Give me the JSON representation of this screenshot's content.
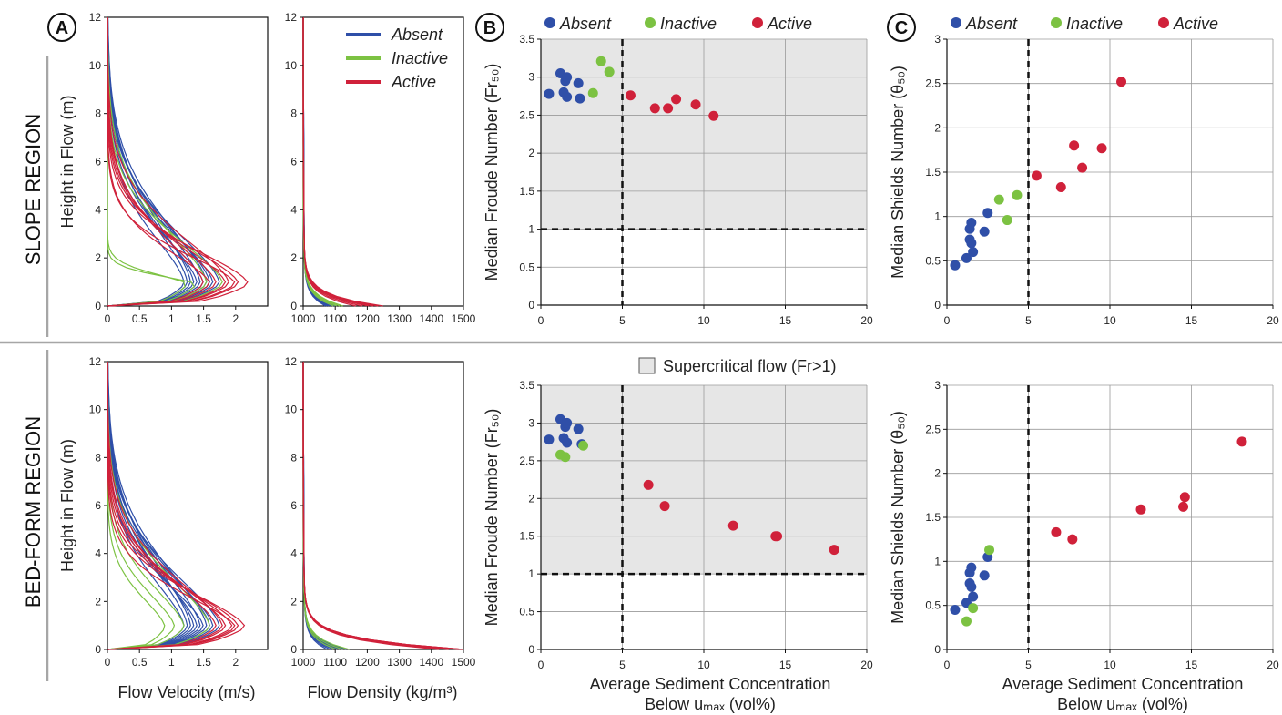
{
  "panel_labels": [
    "A",
    "B",
    "C"
  ],
  "regions": [
    "SLOPE REGION",
    "BED-FORM REGION"
  ],
  "colors": {
    "Absent": "#2f4fa8",
    "Inactive": "#7cc242",
    "Active": "#d0213a"
  },
  "shade_legend": "Supercritical flow (Fr>1)",
  "axis_labels": {
    "height": "Height in Flow (m)",
    "velocity": "Flow Velocity (m/s)",
    "density": "Flow Density (kg/m³)",
    "froude": "Median Froude Number (Fr₅₀)",
    "shields": "Median Shields Number (θ₅₀)",
    "conc1": "Average Sediment Concentration",
    "conc2": "Below uₘₐₓ (vol%)"
  },
  "chart_data": [
    {
      "id": "slope-velocity",
      "type": "line",
      "region": "SLOPE REGION",
      "xlabel": "",
      "ylabel": "Height in Flow (m)",
      "xlim": [
        0,
        2.5
      ],
      "ylim": [
        0,
        12
      ],
      "xticks": [
        0,
        0.5,
        1,
        1.5,
        2
      ],
      "yticks": [
        0,
        2,
        4,
        6,
        8,
        10,
        12
      ],
      "series": [
        {
          "name": "Absent",
          "profiles": [
            {
              "umax": 1.3,
              "h": 12
            },
            {
              "umax": 1.45,
              "h": 11.5
            },
            {
              "umax": 1.6,
              "h": 11
            },
            {
              "umax": 1.75,
              "h": 10.5
            },
            {
              "umax": 1.4,
              "h": 10
            },
            {
              "umax": 1.55,
              "h": 11.8
            },
            {
              "umax": 1.2,
              "h": 9.5
            },
            {
              "umax": 1.65,
              "h": 10.2
            },
            {
              "umax": 1.35,
              "h": 10.8
            },
            {
              "umax": 1.5,
              "h": 9
            },
            {
              "umax": 1.25,
              "h": 11.2
            }
          ]
        },
        {
          "name": "Inactive",
          "profiles": [
            {
              "umax": 1.25,
              "h": 2
            },
            {
              "umax": 1.4,
              "h": 1.6
            },
            {
              "umax": 1.55,
              "h": 10.5
            },
            {
              "umax": 1.8,
              "h": 9
            }
          ]
        },
        {
          "name": "Active",
          "profiles": [
            {
              "umax": 1.5,
              "h": 9
            },
            {
              "umax": 1.7,
              "h": 8.5
            },
            {
              "umax": 1.85,
              "h": 8
            },
            {
              "umax": 2.05,
              "h": 7.5
            },
            {
              "umax": 2.2,
              "h": 7
            },
            {
              "umax": 1.6,
              "h": 6.5
            },
            {
              "umax": 1.9,
              "h": 9.5
            },
            {
              "umax": 2.0,
              "h": 6
            }
          ]
        }
      ]
    },
    {
      "id": "slope-density",
      "type": "line",
      "region": "SLOPE REGION",
      "xlabel": "",
      "ylabel": "",
      "xlim": [
        1000,
        1500
      ],
      "ylim": [
        0,
        12
      ],
      "xticks": [
        1000,
        1100,
        1200,
        1300,
        1400,
        1500
      ],
      "yticks": [
        0,
        2,
        4,
        6,
        8,
        10,
        12
      ],
      "legend": "top-right",
      "series": [
        {
          "name": "Absent",
          "profiles": [
            {
              "rho0": 1070,
              "h": 12
            },
            {
              "rho0": 1080,
              "h": 11
            },
            {
              "rho0": 1090,
              "h": 10
            },
            {
              "rho0": 1095,
              "h": 11.5
            },
            {
              "rho0": 1075,
              "h": 10.5
            },
            {
              "rho0": 1085,
              "h": 9.5
            },
            {
              "rho0": 1065,
              "h": 12
            },
            {
              "rho0": 1100,
              "h": 10
            }
          ]
        },
        {
          "name": "Inactive",
          "profiles": [
            {
              "rho0": 1090,
              "h": 4
            },
            {
              "rho0": 1110,
              "h": 6
            },
            {
              "rho0": 1120,
              "h": 9
            },
            {
              "rho0": 1100,
              "h": 5
            }
          ]
        },
        {
          "name": "Active",
          "profiles": [
            {
              "rho0": 1180,
              "h": 9
            },
            {
              "rho0": 1200,
              "h": 8.5
            },
            {
              "rho0": 1215,
              "h": 8
            },
            {
              "rho0": 1230,
              "h": 7.5
            },
            {
              "rho0": 1245,
              "h": 7
            },
            {
              "rho0": 1160,
              "h": 9.5
            }
          ]
        }
      ]
    },
    {
      "id": "slope-froude",
      "type": "scatter",
      "region": "SLOPE REGION",
      "xlabel": "",
      "ylabel": "Median Froude Number (Fr₅₀)",
      "xlim": [
        0,
        20
      ],
      "ylim": [
        0,
        3.5
      ],
      "xticks": [
        0,
        5,
        10,
        15,
        20
      ],
      "yticks": [
        0,
        0.5,
        1,
        1.5,
        2,
        2.5,
        3,
        3.5
      ],
      "legend": "top",
      "shade_above": 1,
      "hline": 1,
      "vline": 5,
      "series": [
        {
          "name": "Absent",
          "points": [
            [
              0.5,
              2.78
            ],
            [
              1.2,
              3.05
            ],
            [
              1.4,
              2.8
            ],
            [
              1.5,
              2.95
            ],
            [
              1.6,
              2.74
            ],
            [
              1.6,
              3.0
            ],
            [
              2.3,
              2.92
            ],
            [
              2.4,
              2.72
            ]
          ]
        },
        {
          "name": "Inactive",
          "points": [
            [
              3.2,
              2.79
            ],
            [
              3.7,
              3.21
            ],
            [
              4.2,
              3.07
            ]
          ]
        },
        {
          "name": "Active",
          "points": [
            [
              5.5,
              2.76
            ],
            [
              7.0,
              2.59
            ],
            [
              7.8,
              2.59
            ],
            [
              8.3,
              2.71
            ],
            [
              9.5,
              2.64
            ],
            [
              10.6,
              2.49
            ]
          ]
        }
      ]
    },
    {
      "id": "slope-shields",
      "type": "scatter",
      "region": "SLOPE REGION",
      "xlabel": "",
      "ylabel": "Median Shields Number (θ₅₀)",
      "xlim": [
        0,
        20
      ],
      "ylim": [
        0,
        3
      ],
      "xticks": [
        0,
        5,
        10,
        15,
        20
      ],
      "yticks": [
        0,
        0.5,
        1,
        1.5,
        2,
        2.5,
        3
      ],
      "legend": "top",
      "vline": 5,
      "series": [
        {
          "name": "Absent",
          "points": [
            [
              0.5,
              0.45
            ],
            [
              1.2,
              0.53
            ],
            [
              1.4,
              0.74
            ],
            [
              1.4,
              0.86
            ],
            [
              1.5,
              0.7
            ],
            [
              1.5,
              0.93
            ],
            [
              1.6,
              0.6
            ],
            [
              2.3,
              0.83
            ],
            [
              2.5,
              1.04
            ]
          ]
        },
        {
          "name": "Inactive",
          "points": [
            [
              3.2,
              1.19
            ],
            [
              3.7,
              0.96
            ],
            [
              4.3,
              1.24
            ]
          ]
        },
        {
          "name": "Active",
          "points": [
            [
              5.5,
              1.46
            ],
            [
              7.0,
              1.33
            ],
            [
              7.8,
              1.8
            ],
            [
              8.3,
              1.55
            ],
            [
              9.5,
              1.77
            ],
            [
              10.7,
              2.52
            ]
          ]
        }
      ]
    },
    {
      "id": "bedform-velocity",
      "type": "line",
      "region": "BED-FORM REGION",
      "xlabel": "Flow Velocity (m/s)",
      "ylabel": "Height in Flow (m)",
      "xlim": [
        0,
        2.5
      ],
      "ylim": [
        0,
        12
      ],
      "xticks": [
        0,
        0.5,
        1,
        1.5,
        2
      ],
      "yticks": [
        0,
        2,
        4,
        6,
        8,
        10,
        12
      ],
      "series": [
        {
          "name": "Absent",
          "profiles": [
            {
              "umax": 1.3,
              "h": 12
            },
            {
              "umax": 1.45,
              "h": 11.5
            },
            {
              "umax": 1.6,
              "h": 11
            },
            {
              "umax": 1.75,
              "h": 10.5
            },
            {
              "umax": 1.4,
              "h": 10
            },
            {
              "umax": 1.55,
              "h": 11.8
            },
            {
              "umax": 1.2,
              "h": 9.5
            },
            {
              "umax": 1.65,
              "h": 10.2
            },
            {
              "umax": 1.35,
              "h": 10.8
            },
            {
              "umax": 1.5,
              "h": 9
            },
            {
              "umax": 1.25,
              "h": 11.2
            }
          ]
        },
        {
          "name": "Inactive",
          "profiles": [
            {
              "umax": 0.9,
              "h": 6
            },
            {
              "umax": 1.05,
              "h": 7
            },
            {
              "umax": 1.2,
              "h": 8
            },
            {
              "umax": 1.6,
              "h": 10
            }
          ]
        },
        {
          "name": "Active",
          "profiles": [
            {
              "umax": 1.7,
              "h": 9
            },
            {
              "umax": 1.85,
              "h": 8.5
            },
            {
              "umax": 1.95,
              "h": 8
            },
            {
              "umax": 2.05,
              "h": 7.5
            },
            {
              "umax": 2.15,
              "h": 7
            },
            {
              "umax": 1.8,
              "h": 9.5
            },
            {
              "umax": 2.0,
              "h": 6.5
            }
          ]
        }
      ]
    },
    {
      "id": "bedform-density",
      "type": "line",
      "region": "BED-FORM REGION",
      "xlabel": "Flow Density (kg/m³)",
      "ylabel": "",
      "xlim": [
        1000,
        1500
      ],
      "ylim": [
        0,
        12
      ],
      "xticks": [
        1000,
        1100,
        1200,
        1300,
        1400,
        1500
      ],
      "yticks": [
        0,
        2,
        4,
        6,
        8,
        10,
        12
      ],
      "series": [
        {
          "name": "Absent",
          "profiles": [
            {
              "rho0": 1080,
              "h": 12
            },
            {
              "rho0": 1100,
              "h": 11
            },
            {
              "rho0": 1120,
              "h": 10
            },
            {
              "rho0": 1110,
              "h": 11.5
            },
            {
              "rho0": 1090,
              "h": 10.5
            },
            {
              "rho0": 1130,
              "h": 9.5
            },
            {
              "rho0": 1070,
              "h": 12
            }
          ]
        },
        {
          "name": "Inactive",
          "profiles": [
            {
              "rho0": 1100,
              "h": 5
            },
            {
              "rho0": 1120,
              "h": 6
            },
            {
              "rho0": 1140,
              "h": 5.5
            }
          ]
        },
        {
          "name": "Active",
          "profiles": [
            {
              "rho0": 1420,
              "h": 9
            },
            {
              "rho0": 1450,
              "h": 8.5
            },
            {
              "rho0": 1480,
              "h": 8
            },
            {
              "rho0": 1500,
              "h": 7.5
            },
            {
              "rho0": 1500,
              "h": 7
            },
            {
              "rho0": 1500,
              "h": 9.5
            }
          ]
        }
      ]
    },
    {
      "id": "bedform-froude",
      "type": "scatter",
      "region": "BED-FORM REGION",
      "xlabel": "Average Sediment Concentration Below uₘₐₓ (vol%)",
      "ylabel": "Median Froude Number (Fr₅₀)",
      "xlim": [
        0,
        20
      ],
      "ylim": [
        0,
        3.5
      ],
      "xticks": [
        0,
        5,
        10,
        15,
        20
      ],
      "yticks": [
        0,
        0.5,
        1,
        1.5,
        2,
        2.5,
        3,
        3.5
      ],
      "shade_above": 1,
      "hline": 1,
      "vline": 5,
      "series": [
        {
          "name": "Absent",
          "points": [
            [
              0.5,
              2.78
            ],
            [
              1.2,
              3.05
            ],
            [
              1.4,
              2.8
            ],
            [
              1.5,
              2.95
            ],
            [
              1.6,
              2.74
            ],
            [
              1.6,
              3.0
            ],
            [
              2.3,
              2.92
            ],
            [
              2.5,
              2.72
            ]
          ]
        },
        {
          "name": "Inactive",
          "points": [
            [
              1.2,
              2.58
            ],
            [
              1.5,
              2.55
            ],
            [
              2.6,
              2.7
            ]
          ]
        },
        {
          "name": "Active",
          "points": [
            [
              6.6,
              2.18
            ],
            [
              7.6,
              1.9
            ],
            [
              11.8,
              1.64
            ],
            [
              14.4,
              1.5
            ],
            [
              14.5,
              1.5
            ],
            [
              18.0,
              1.32
            ]
          ]
        }
      ]
    },
    {
      "id": "bedform-shields",
      "type": "scatter",
      "region": "BED-FORM REGION",
      "xlabel": "Average Sediment Concentration Below uₘₐₓ (vol%)",
      "ylabel": "Median Shields Number (θ₅₀)",
      "xlim": [
        0,
        20
      ],
      "ylim": [
        0,
        3
      ],
      "xticks": [
        0,
        5,
        10,
        15,
        20
      ],
      "yticks": [
        0,
        0.5,
        1,
        1.5,
        2,
        2.5,
        3
      ],
      "vline": 5,
      "series": [
        {
          "name": "Absent",
          "points": [
            [
              0.5,
              0.45
            ],
            [
              1.2,
              0.53
            ],
            [
              1.4,
              0.75
            ],
            [
              1.4,
              0.87
            ],
            [
              1.5,
              0.71
            ],
            [
              1.5,
              0.93
            ],
            [
              1.6,
              0.6
            ],
            [
              2.3,
              0.84
            ],
            [
              2.5,
              1.05
            ]
          ]
        },
        {
          "name": "Inactive",
          "points": [
            [
              1.2,
              0.32
            ],
            [
              1.6,
              0.47
            ],
            [
              2.6,
              1.13
            ]
          ]
        },
        {
          "name": "Active",
          "points": [
            [
              6.7,
              1.33
            ],
            [
              7.7,
              1.25
            ],
            [
              11.9,
              1.59
            ],
            [
              14.5,
              1.62
            ],
            [
              14.6,
              1.73
            ],
            [
              18.1,
              2.36
            ]
          ]
        }
      ]
    }
  ]
}
